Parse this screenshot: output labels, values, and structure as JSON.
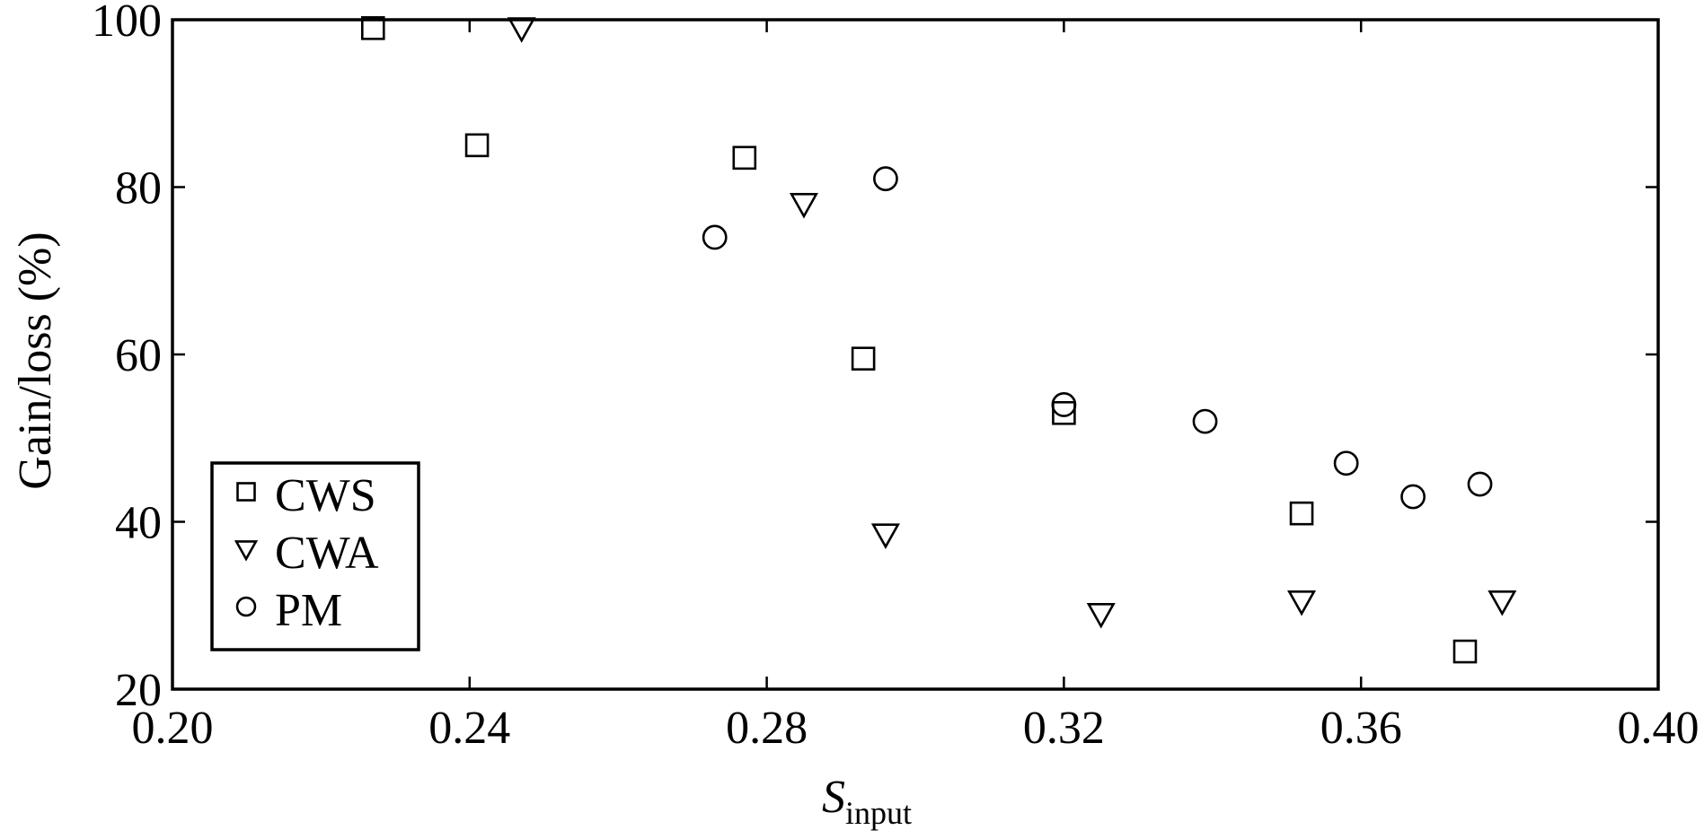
{
  "chart_data": {
    "type": "scatter",
    "xlabel": "S",
    "xlabel_subscript": "input",
    "ylabel": "Gain/loss (%)",
    "xlim": [
      0.2,
      0.4
    ],
    "ylim": [
      20,
      100
    ],
    "x_ticks": [
      0.2,
      0.24,
      0.28,
      0.32,
      0.36,
      0.4
    ],
    "x_tick_labels": [
      "0.20",
      "0.24",
      "0.28",
      "0.32",
      "0.36",
      "0.40"
    ],
    "y_ticks": [
      20,
      40,
      60,
      80,
      100
    ],
    "y_tick_labels": [
      "20",
      "40",
      "60",
      "80",
      "100"
    ],
    "grid": false,
    "legend_position": "bottom-left",
    "series": [
      {
        "name": "CWS",
        "marker": "square",
        "points": [
          {
            "x": 0.227,
            "y": 99
          },
          {
            "x": 0.241,
            "y": 85
          },
          {
            "x": 0.277,
            "y": 83.5
          },
          {
            "x": 0.293,
            "y": 59.5
          },
          {
            "x": 0.32,
            "y": 53
          },
          {
            "x": 0.352,
            "y": 41
          },
          {
            "x": 0.374,
            "y": 24.5
          }
        ]
      },
      {
        "name": "CWA",
        "marker": "triangle-down",
        "points": [
          {
            "x": 0.247,
            "y": 99
          },
          {
            "x": 0.285,
            "y": 78
          },
          {
            "x": 0.296,
            "y": 38.5
          },
          {
            "x": 0.325,
            "y": 29
          },
          {
            "x": 0.352,
            "y": 30.5
          },
          {
            "x": 0.379,
            "y": 30.5
          }
        ]
      },
      {
        "name": "PM",
        "marker": "circle",
        "points": [
          {
            "x": 0.273,
            "y": 74
          },
          {
            "x": 0.296,
            "y": 81
          },
          {
            "x": 0.32,
            "y": 54
          },
          {
            "x": 0.339,
            "y": 52
          },
          {
            "x": 0.358,
            "y": 47
          },
          {
            "x": 0.367,
            "y": 43
          },
          {
            "x": 0.376,
            "y": 44.5
          }
        ]
      }
    ]
  }
}
